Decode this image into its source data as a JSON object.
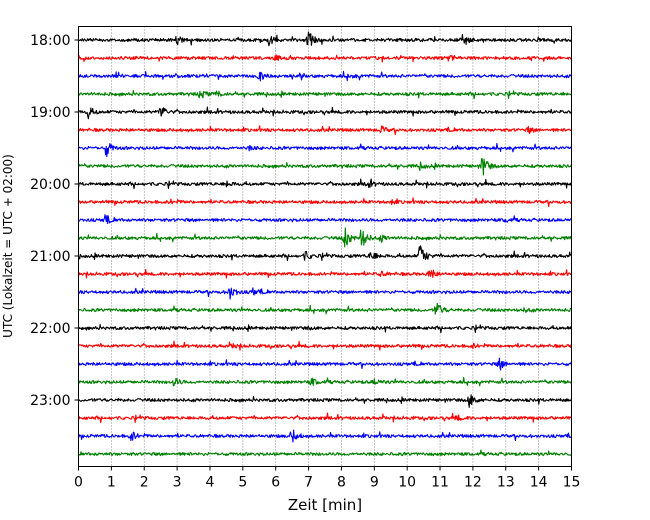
{
  "chart_data": {
    "type": "line",
    "title": "",
    "xlabel": "Zeit  [min]",
    "ylabel": "UTC (Lokalzeit = UTC + 02:00)",
    "xlim": [
      0,
      15
    ],
    "x_ticks": [
      "0",
      "1",
      "2",
      "3",
      "4",
      "5",
      "6",
      "7",
      "8",
      "9",
      "10",
      "11",
      "12",
      "13",
      "14",
      "15"
    ],
    "y_tick_labels": [
      "18:00",
      "19:00",
      "20:00",
      "21:00",
      "22:00",
      "23:00"
    ],
    "grid": "vertical dotted at each minute",
    "row_interval_minutes": 15,
    "start_time": "18:00",
    "colors": [
      "#000000",
      "#ff0000",
      "#0000ff",
      "#008000"
    ],
    "traces": [
      {
        "time": "18:00",
        "color": "#000000",
        "events": [
          {
            "t": 3.0,
            "a": 0.5
          },
          {
            "t": 5.8,
            "a": 0.6
          },
          {
            "t": 7.0,
            "a": 1.0
          },
          {
            "t": 11.7,
            "a": 0.8
          }
        ]
      },
      {
        "time": "18:15",
        "color": "#ff0000",
        "events": [
          {
            "t": 6.0,
            "a": 0.3
          },
          {
            "t": 11.2,
            "a": 0.4
          }
        ]
      },
      {
        "time": "18:30",
        "color": "#0000ff",
        "events": [
          {
            "t": 5.5,
            "a": 0.5
          },
          {
            "t": 8.2,
            "a": 0.3
          }
        ]
      },
      {
        "time": "18:45",
        "color": "#008000",
        "events": [
          {
            "t": 3.7,
            "a": 0.5
          },
          {
            "t": 4.2,
            "a": 0.3
          }
        ]
      },
      {
        "time": "19:00",
        "color": "#000000",
        "events": [
          {
            "t": 0.3,
            "a": 0.6
          },
          {
            "t": 2.5,
            "a": 0.8
          }
        ]
      },
      {
        "time": "19:15",
        "color": "#ff0000",
        "events": [
          {
            "t": 9.2,
            "a": 0.4
          },
          {
            "t": 13.7,
            "a": 0.3
          }
        ]
      },
      {
        "time": "19:30",
        "color": "#0000ff",
        "events": [
          {
            "t": 0.85,
            "a": 0.9
          },
          {
            "t": 5.2,
            "a": 0.2
          }
        ]
      },
      {
        "time": "19:45",
        "color": "#008000",
        "events": [
          {
            "t": 10.4,
            "a": 0.3
          },
          {
            "t": 12.3,
            "a": 1.3
          }
        ]
      },
      {
        "time": "20:00",
        "color": "#000000",
        "events": [
          {
            "t": 4.5,
            "a": 0.3
          },
          {
            "t": 8.8,
            "a": 0.4
          }
        ]
      },
      {
        "time": "20:15",
        "color": "#ff0000",
        "events": [
          {
            "t": 2.8,
            "a": 0.2
          },
          {
            "t": 9.5,
            "a": 0.2
          }
        ]
      },
      {
        "time": "20:30",
        "color": "#0000ff",
        "events": [
          {
            "t": 0.8,
            "a": 0.5
          },
          {
            "t": 13.0,
            "a": 0.2
          }
        ]
      },
      {
        "time": "20:45",
        "color": "#008000",
        "events": [
          {
            "t": 8.1,
            "a": 1.2
          },
          {
            "t": 8.6,
            "a": 1.4
          },
          {
            "t": 9.2,
            "a": 0.4
          }
        ]
      },
      {
        "time": "21:00",
        "color": "#000000",
        "events": [
          {
            "t": 6.9,
            "a": 0.5
          },
          {
            "t": 8.9,
            "a": 0.6
          },
          {
            "t": 10.4,
            "a": 1.5
          }
        ]
      },
      {
        "time": "21:15",
        "color": "#ff0000",
        "events": [
          {
            "t": 9.2,
            "a": 0.3
          },
          {
            "t": 10.7,
            "a": 0.7
          }
        ]
      },
      {
        "time": "21:30",
        "color": "#0000ff",
        "events": [
          {
            "t": 4.6,
            "a": 0.9
          },
          {
            "t": 5.3,
            "a": 0.4
          }
        ]
      },
      {
        "time": "21:45",
        "color": "#008000",
        "events": [
          {
            "t": 10.9,
            "a": 1.0
          },
          {
            "t": 13.6,
            "a": 0.2
          }
        ]
      },
      {
        "time": "22:00",
        "color": "#000000",
        "events": [
          {
            "t": 7.0,
            "a": 0.1
          }
        ]
      },
      {
        "time": "22:15",
        "color": "#ff0000",
        "events": [
          {
            "t": 4.7,
            "a": 0.2
          },
          {
            "t": 12.0,
            "a": 0.2
          }
        ]
      },
      {
        "time": "22:30",
        "color": "#0000ff",
        "events": [
          {
            "t": 12.8,
            "a": 0.7
          }
        ]
      },
      {
        "time": "22:45",
        "color": "#008000",
        "events": [
          {
            "t": 2.9,
            "a": 0.5
          },
          {
            "t": 7.1,
            "a": 0.4
          },
          {
            "t": 9.0,
            "a": 0.3
          }
        ]
      },
      {
        "time": "23:00",
        "color": "#000000",
        "events": [
          {
            "t": 11.9,
            "a": 0.8
          }
        ]
      },
      {
        "time": "23:15",
        "color": "#ff0000",
        "events": [
          {
            "t": 11.5,
            "a": 0.3
          }
        ]
      },
      {
        "time": "23:30",
        "color": "#0000ff",
        "events": [
          {
            "t": 1.6,
            "a": 0.6
          },
          {
            "t": 6.5,
            "a": 0.8
          }
        ]
      },
      {
        "time": "23:45",
        "color": "#008000",
        "events": []
      }
    ]
  }
}
